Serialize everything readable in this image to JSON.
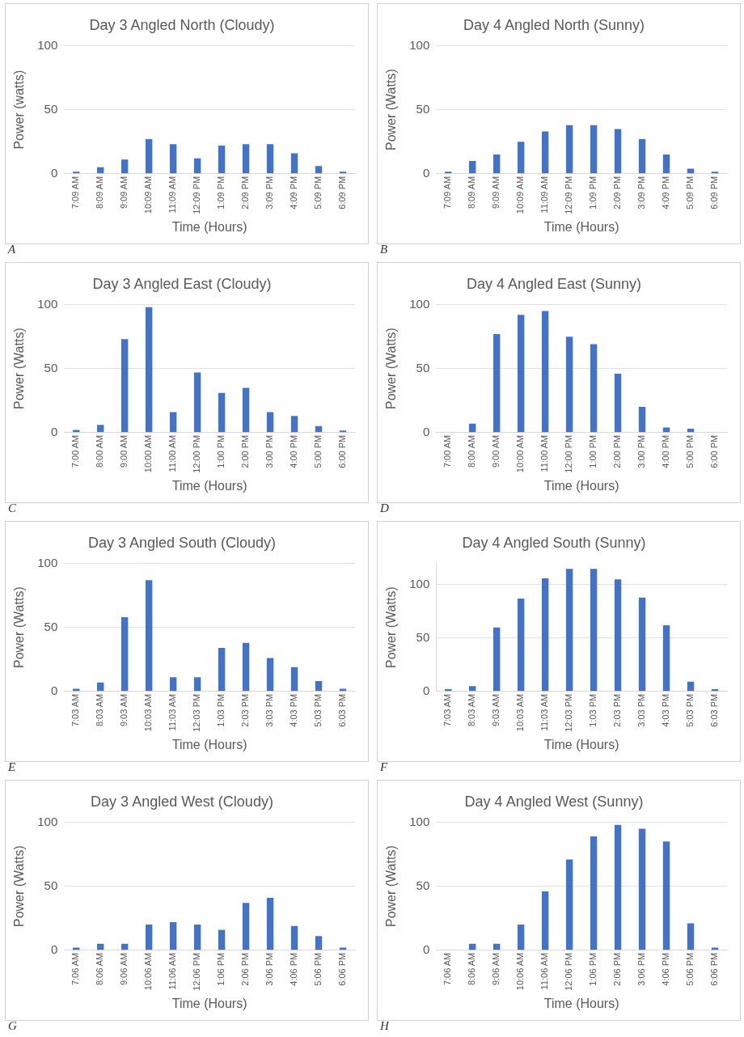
{
  "chart_data": [
    {
      "type": "bar",
      "title": "Day 3 Angled North (Cloudy)",
      "xlabel": "Time (Hours)",
      "ylabel": "Power (watts)",
      "categories": [
        "7:09 AM",
        "8:09 AM",
        "9:09 AM",
        "10:09 AM",
        "11:09 AM",
        "12:09 PM",
        "1:09 PM",
        "2:09 PM",
        "3:09 PM",
        "4:09 PM",
        "5:09 PM",
        "6:09 PM"
      ],
      "values": [
        1.5,
        5,
        11,
        27,
        23,
        12,
        22,
        23,
        23,
        16,
        6,
        1.5
      ],
      "color": "#4472c4",
      "ylim": [
        0,
        100
      ],
      "yticks": [
        0,
        50,
        100
      ],
      "grid": "y",
      "annotations": [
        "A"
      ]
    },
    {
      "type": "bar",
      "title": "Day 4 Angled North (Sunny)",
      "xlabel": "Time (Hours)",
      "ylabel": "Power (Watts)",
      "categories": [
        "7:09 AM",
        "8:09 AM",
        "9:09 AM",
        "10:09 AM",
        "11:09 AM",
        "12:09 PM",
        "1:09 PM",
        "2:09 PM",
        "3:09 PM",
        "4:09 PM",
        "5:09 PM",
        "6:09 PM"
      ],
      "values": [
        1.5,
        10,
        15,
        25,
        33,
        38,
        38,
        35,
        27,
        15,
        4,
        1.5
      ],
      "color": "#4472c4",
      "ylim": [
        0,
        100
      ],
      "yticks": [
        0,
        50,
        100
      ],
      "grid": "y",
      "annotations": [
        "B"
      ]
    },
    {
      "type": "bar",
      "title": "Day 3 Angled East (Cloudy)",
      "xlabel": "Time (Hours)",
      "ylabel": "Power (Watts)",
      "categories": [
        "7:00 AM",
        "8:00 AM",
        "9:00 AM",
        "10:00 AM",
        "11:00 AM",
        "12:00 PM",
        "1:00 PM",
        "2:00 PM",
        "3:00 PM",
        "4:00 PM",
        "5:00 PM",
        "6:00 PM"
      ],
      "values": [
        2,
        6,
        73,
        98,
        16,
        47,
        31,
        35,
        16,
        13,
        5,
        1.5
      ],
      "color": "#4472c4",
      "ylim": [
        0,
        100
      ],
      "yticks": [
        0,
        50,
        100
      ],
      "grid": "y",
      "annotations": [
        "C"
      ]
    },
    {
      "type": "bar",
      "title": "Day 4 Angled East (Sunny)",
      "xlabel": "Time (Hours)",
      "ylabel": "Power (Watts)",
      "categories": [
        "7:00 AM",
        "8:00 AM",
        "9:00 AM",
        "10:00 AM",
        "11:00 AM",
        "12:00 PM",
        "1:00 PM",
        "2:00 PM",
        "3:00 PM",
        "4:00 PM",
        "5:00 PM",
        "6:00 PM"
      ],
      "values": [
        0,
        7,
        77,
        92,
        95,
        75,
        69,
        46,
        20,
        4,
        3,
        0
      ],
      "color": "#4472c4",
      "ylim": [
        0,
        100
      ],
      "yticks": [
        0,
        50,
        100
      ],
      "grid": "y",
      "annotations": [
        "D"
      ]
    },
    {
      "type": "bar",
      "title": "Day 3 Angled South (Cloudy)",
      "xlabel": "Time (Hours)",
      "ylabel": "Power (Watts)",
      "categories": [
        "7:03 AM",
        "8:03 AM",
        "9:03 AM",
        "10:03 AM",
        "11:03 AM",
        "12:03 PM",
        "1:03 PM",
        "2:03 PM",
        "3:03 PM",
        "4:03 PM",
        "5:03 PM",
        "6:03 PM"
      ],
      "values": [
        2,
        7,
        58,
        87,
        11,
        11,
        34,
        38,
        26,
        19,
        8,
        2
      ],
      "color": "#4472c4",
      "ylim": [
        0,
        100
      ],
      "yticks": [
        0,
        50,
        100
      ],
      "grid": "y",
      "annotations": [
        "E"
      ]
    },
    {
      "type": "bar",
      "title": "Day 4 Angled South (Sunny)",
      "xlabel": "Time (Hours)",
      "ylabel": "Power (Watts)",
      "categories": [
        "7:03 AM",
        "8:03 AM",
        "9:03 AM",
        "10:03 AM",
        "11:03 AM",
        "12:03 PM",
        "1:03 PM",
        "2:03 PM",
        "3:03 PM",
        "4:03 PM",
        "5:03 PM",
        "6:03 PM"
      ],
      "values": [
        2,
        5,
        60,
        87,
        106,
        115,
        115,
        105,
        88,
        62,
        9,
        2
      ],
      "color": "#4472c4",
      "ylim": [
        0,
        120
      ],
      "yticks": [
        0,
        50,
        100
      ],
      "grid": "y",
      "annotations": [
        "F"
      ]
    },
    {
      "type": "bar",
      "title": "Day 3 Angled West (Cloudy)",
      "xlabel": "Time (Hours)",
      "ylabel": "Power (Watts)",
      "categories": [
        "7:06 AM",
        "8:06 AM",
        "9:06 AM",
        "10:06 AM",
        "11:06 AM",
        "12:06 PM",
        "1:06 PM",
        "2:06 PM",
        "3:06 PM",
        "4:06 PM",
        "5:06 PM",
        "6:06 PM"
      ],
      "values": [
        2,
        5,
        5,
        20,
        22,
        20,
        16,
        37,
        41,
        19,
        11,
        2
      ],
      "color": "#4472c4",
      "ylim": [
        0,
        100
      ],
      "yticks": [
        0,
        50,
        100
      ],
      "grid": "y",
      "annotations": [
        "G"
      ]
    },
    {
      "type": "bar",
      "title": "Day 4 Angled West (Sunny)",
      "xlabel": "Time (Hours)",
      "ylabel": "Power (Watts)",
      "categories": [
        "7:06 AM",
        "8:06 AM",
        "9:06 AM",
        "10:06 AM",
        "11:06 AM",
        "12:06 PM",
        "1:06 PM",
        "2:06 PM",
        "3:06 PM",
        "4:06 PM",
        "5:06 PM",
        "6:06 PM"
      ],
      "values": [
        0,
        5,
        5,
        20,
        46,
        71,
        89,
        98,
        95,
        85,
        21,
        2
      ],
      "color": "#4472c4",
      "ylim": [
        0,
        100
      ],
      "yticks": [
        0,
        50,
        100
      ],
      "grid": "y",
      "annotations": [
        "H"
      ]
    }
  ]
}
